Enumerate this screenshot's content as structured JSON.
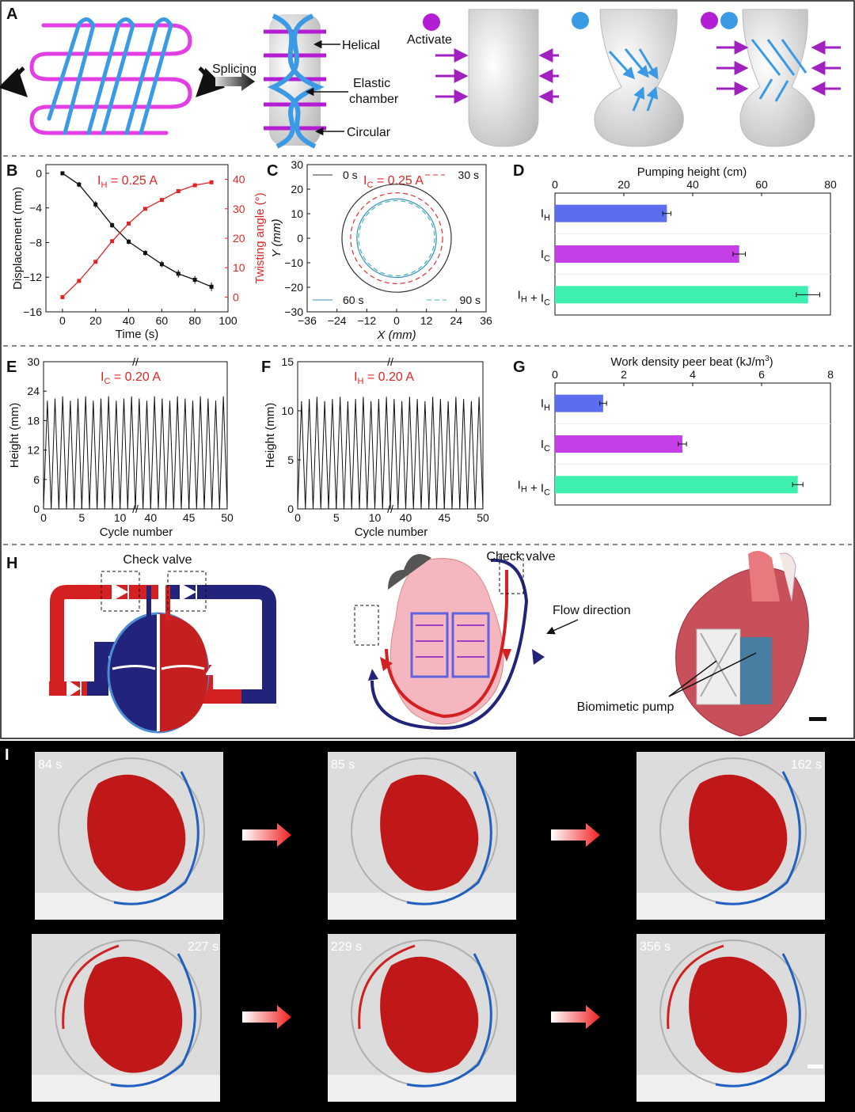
{
  "labels": {
    "A": "A",
    "B": "B",
    "C": "C",
    "D": "D",
    "E": "E",
    "F": "F",
    "G": "G",
    "H": "H",
    "I": "I"
  },
  "panelA": {
    "splicing": "Splicing",
    "helical": "Helical",
    "elastic": "Elastic",
    "chamber": "chamber",
    "circular": "Circular",
    "activate": "Activate",
    "magenta": "#b31dd4",
    "blue": "#3b9ae6"
  },
  "panelH": {
    "check_valve_left": "Check valve",
    "check_valve_mid": "Check valve",
    "flow_direction": "Flow direction",
    "biomimetic_pump": "Biomimetic pump",
    "red": "#d42020",
    "navy": "#22237a"
  },
  "panelI": {
    "times": [
      "84 s",
      "85 s",
      "162 s",
      "227 s",
      "229 s",
      "356 s"
    ]
  },
  "chart_data": [
    {
      "panel": "B",
      "type": "line",
      "annotation": "I_H = 0.25 A",
      "xlabel": "Time (s)",
      "ylabel_left": "Displacement (mm)",
      "ylabel_right": "Twisting angle (°)",
      "xlim": [
        -10,
        100
      ],
      "ylim_left": [
        -16,
        1
      ],
      "ylim_right": [
        -5,
        45
      ],
      "xticks": [
        "0",
        "20",
        "40",
        "60",
        "80",
        "100"
      ],
      "yticks_left": [
        "0",
        "−4",
        "−8",
        "−12",
        "−16"
      ],
      "yticks_right": [
        "0",
        "10",
        "20",
        "30",
        "40"
      ],
      "x": [
        0,
        10,
        20,
        30,
        40,
        50,
        60,
        70,
        80,
        90
      ],
      "series": [
        {
          "axis": "left",
          "color": "#111111",
          "values": [
            0,
            -1.3,
            -3.6,
            -6.0,
            -7.9,
            -9.2,
            -10.5,
            -11.6,
            -12.3,
            -13.1
          ],
          "err": [
            0.1,
            0.3,
            0.4,
            0.3,
            0.3,
            0.3,
            0.35,
            0.45,
            0.45,
            0.5
          ]
        },
        {
          "axis": "right",
          "color": "#e02424",
          "values": [
            0,
            5.5,
            12,
            19,
            25,
            30,
            33,
            36,
            38,
            39
          ]
        }
      ]
    },
    {
      "panel": "C",
      "type": "line",
      "annotation": "I_C = 0.25 A",
      "xlabel": "X (mm)",
      "ylabel": "Y (mm)",
      "xlim": [
        -36,
        36
      ],
      "ylim": [
        -30,
        30
      ],
      "xticks": [
        "−36",
        "−24",
        "−12",
        "0",
        "12",
        "24",
        "36"
      ],
      "yticks": [
        "30",
        "20",
        "10",
        "0",
        "−10",
        "−20",
        "−30"
      ],
      "series": [
        {
          "name": "0 s",
          "radius": 22,
          "color": "#333333",
          "dash": ""
        },
        {
          "name": "30 s",
          "radius": 18.5,
          "color": "#e03030",
          "dash": "6,4"
        },
        {
          "name": "60 s",
          "radius": 16,
          "color": "#3a8fbf",
          "dash": ""
        },
        {
          "name": "90 s",
          "radius": 15.3,
          "color": "#3fb3b0",
          "dash": "6,4"
        }
      ]
    },
    {
      "panel": "D",
      "type": "bar",
      "title": "Pumping height (cm)",
      "xlim": [
        0,
        80
      ],
      "xticks": [
        "0",
        "20",
        "40",
        "60",
        "80"
      ],
      "categories": [
        "I_H",
        "I_C",
        "I_H + I_C"
      ],
      "values": [
        32.5,
        53.5,
        73.5
      ],
      "err": [
        1.2,
        1.8,
        3.4
      ],
      "colors": [
        "#5b6ef0",
        "#c43fe6",
        "#3ef0b0"
      ]
    },
    {
      "panel": "E",
      "type": "line",
      "annotation": "I_C = 0.20 A",
      "xlabel": "Cycle number",
      "ylabel": "Height (mm)",
      "ylim": [
        0,
        30
      ],
      "yticks": [
        "0",
        "6",
        "12",
        "18",
        "24",
        "30"
      ],
      "xticks": [
        "0",
        "5",
        "10",
        "40",
        "45",
        "50"
      ],
      "cycles_left": [
        1,
        2,
        3,
        4,
        5,
        6,
        7,
        8,
        9,
        10,
        11,
        12
      ],
      "cycles_right": [
        39,
        40,
        41,
        42,
        43,
        44,
        45,
        46,
        47,
        48,
        49,
        50
      ],
      "peak_mm": 22.5
    },
    {
      "panel": "F",
      "type": "line",
      "annotation": "I_H = 0.20 A",
      "xlabel": "Cycle number",
      "ylabel": "Height (mm)",
      "ylim": [
        0,
        15
      ],
      "yticks": [
        "0",
        "5",
        "10",
        "15"
      ],
      "xticks": [
        "0",
        "5",
        "10",
        "40",
        "45",
        "50"
      ],
      "peak_mm": 11.2
    },
    {
      "panel": "G",
      "type": "bar",
      "title": "Work density peer beat (kJ/m³)",
      "xlim": [
        0,
        8
      ],
      "xticks": [
        "0",
        "2",
        "4",
        "6",
        "8"
      ],
      "categories": [
        "I_H",
        "I_C",
        "I_H + I_C"
      ],
      "values": [
        1.4,
        3.7,
        7.05
      ],
      "err": [
        0.1,
        0.12,
        0.15
      ],
      "colors": [
        "#5b6ef0",
        "#c43fe6",
        "#3ef0b0"
      ]
    }
  ]
}
